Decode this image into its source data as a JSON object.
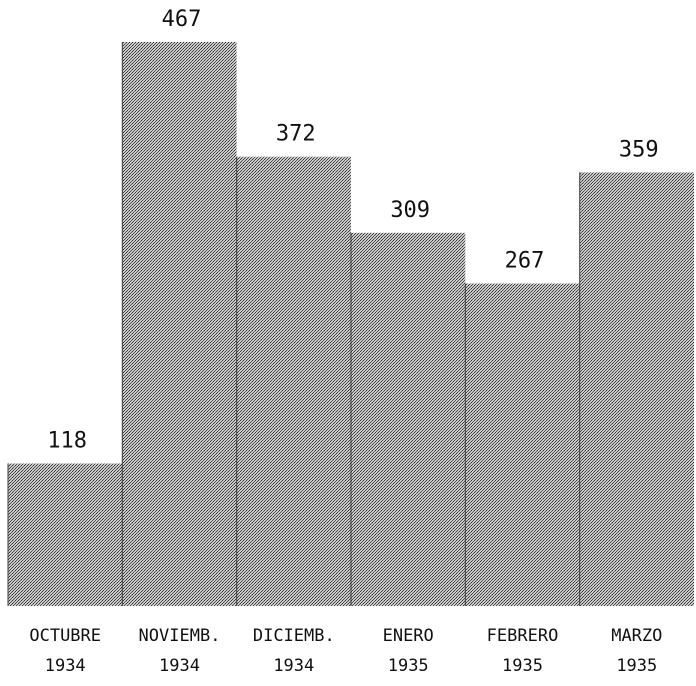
{
  "chart_data": {
    "type": "bar",
    "categories": [
      [
        "OCTUBRE",
        "1934"
      ],
      [
        "NOVIEMB.",
        "1934"
      ],
      [
        "DICIEMB.",
        "1934"
      ],
      [
        "ENERO",
        "1935"
      ],
      [
        "FEBRERO",
        "1935"
      ],
      [
        "MARZO",
        "1935"
      ]
    ],
    "values": [
      118,
      467,
      372,
      309,
      267,
      359
    ],
    "value_labels": [
      "118",
      "467",
      "372",
      "309",
      "267",
      "359"
    ],
    "ylim": [
      0,
      467
    ],
    "grid": false,
    "legend": "none",
    "bar_color": "#9a9a9a",
    "bar_pattern": "dotted-halftone"
  }
}
